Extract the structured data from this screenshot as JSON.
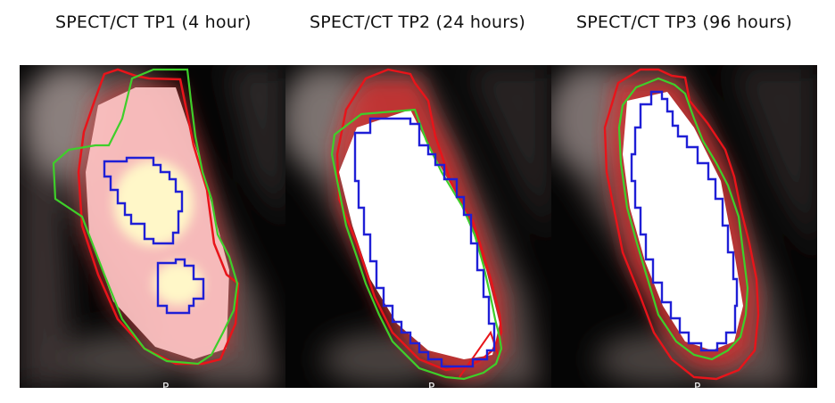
{
  "panels": [
    {
      "title": "SPECT/CT TP1 (4 hour)",
      "orientation_label": "P"
    },
    {
      "title": "SPECT/CT TP2 (24 hours)",
      "orientation_label": "P"
    },
    {
      "title": "SPECT/CT TP3 (96 hours)",
      "orientation_label": "P"
    }
  ],
  "contour_colors": {
    "red": "#e8141a",
    "green": "#3ecf2a",
    "blue": "#1f1fd6"
  }
}
